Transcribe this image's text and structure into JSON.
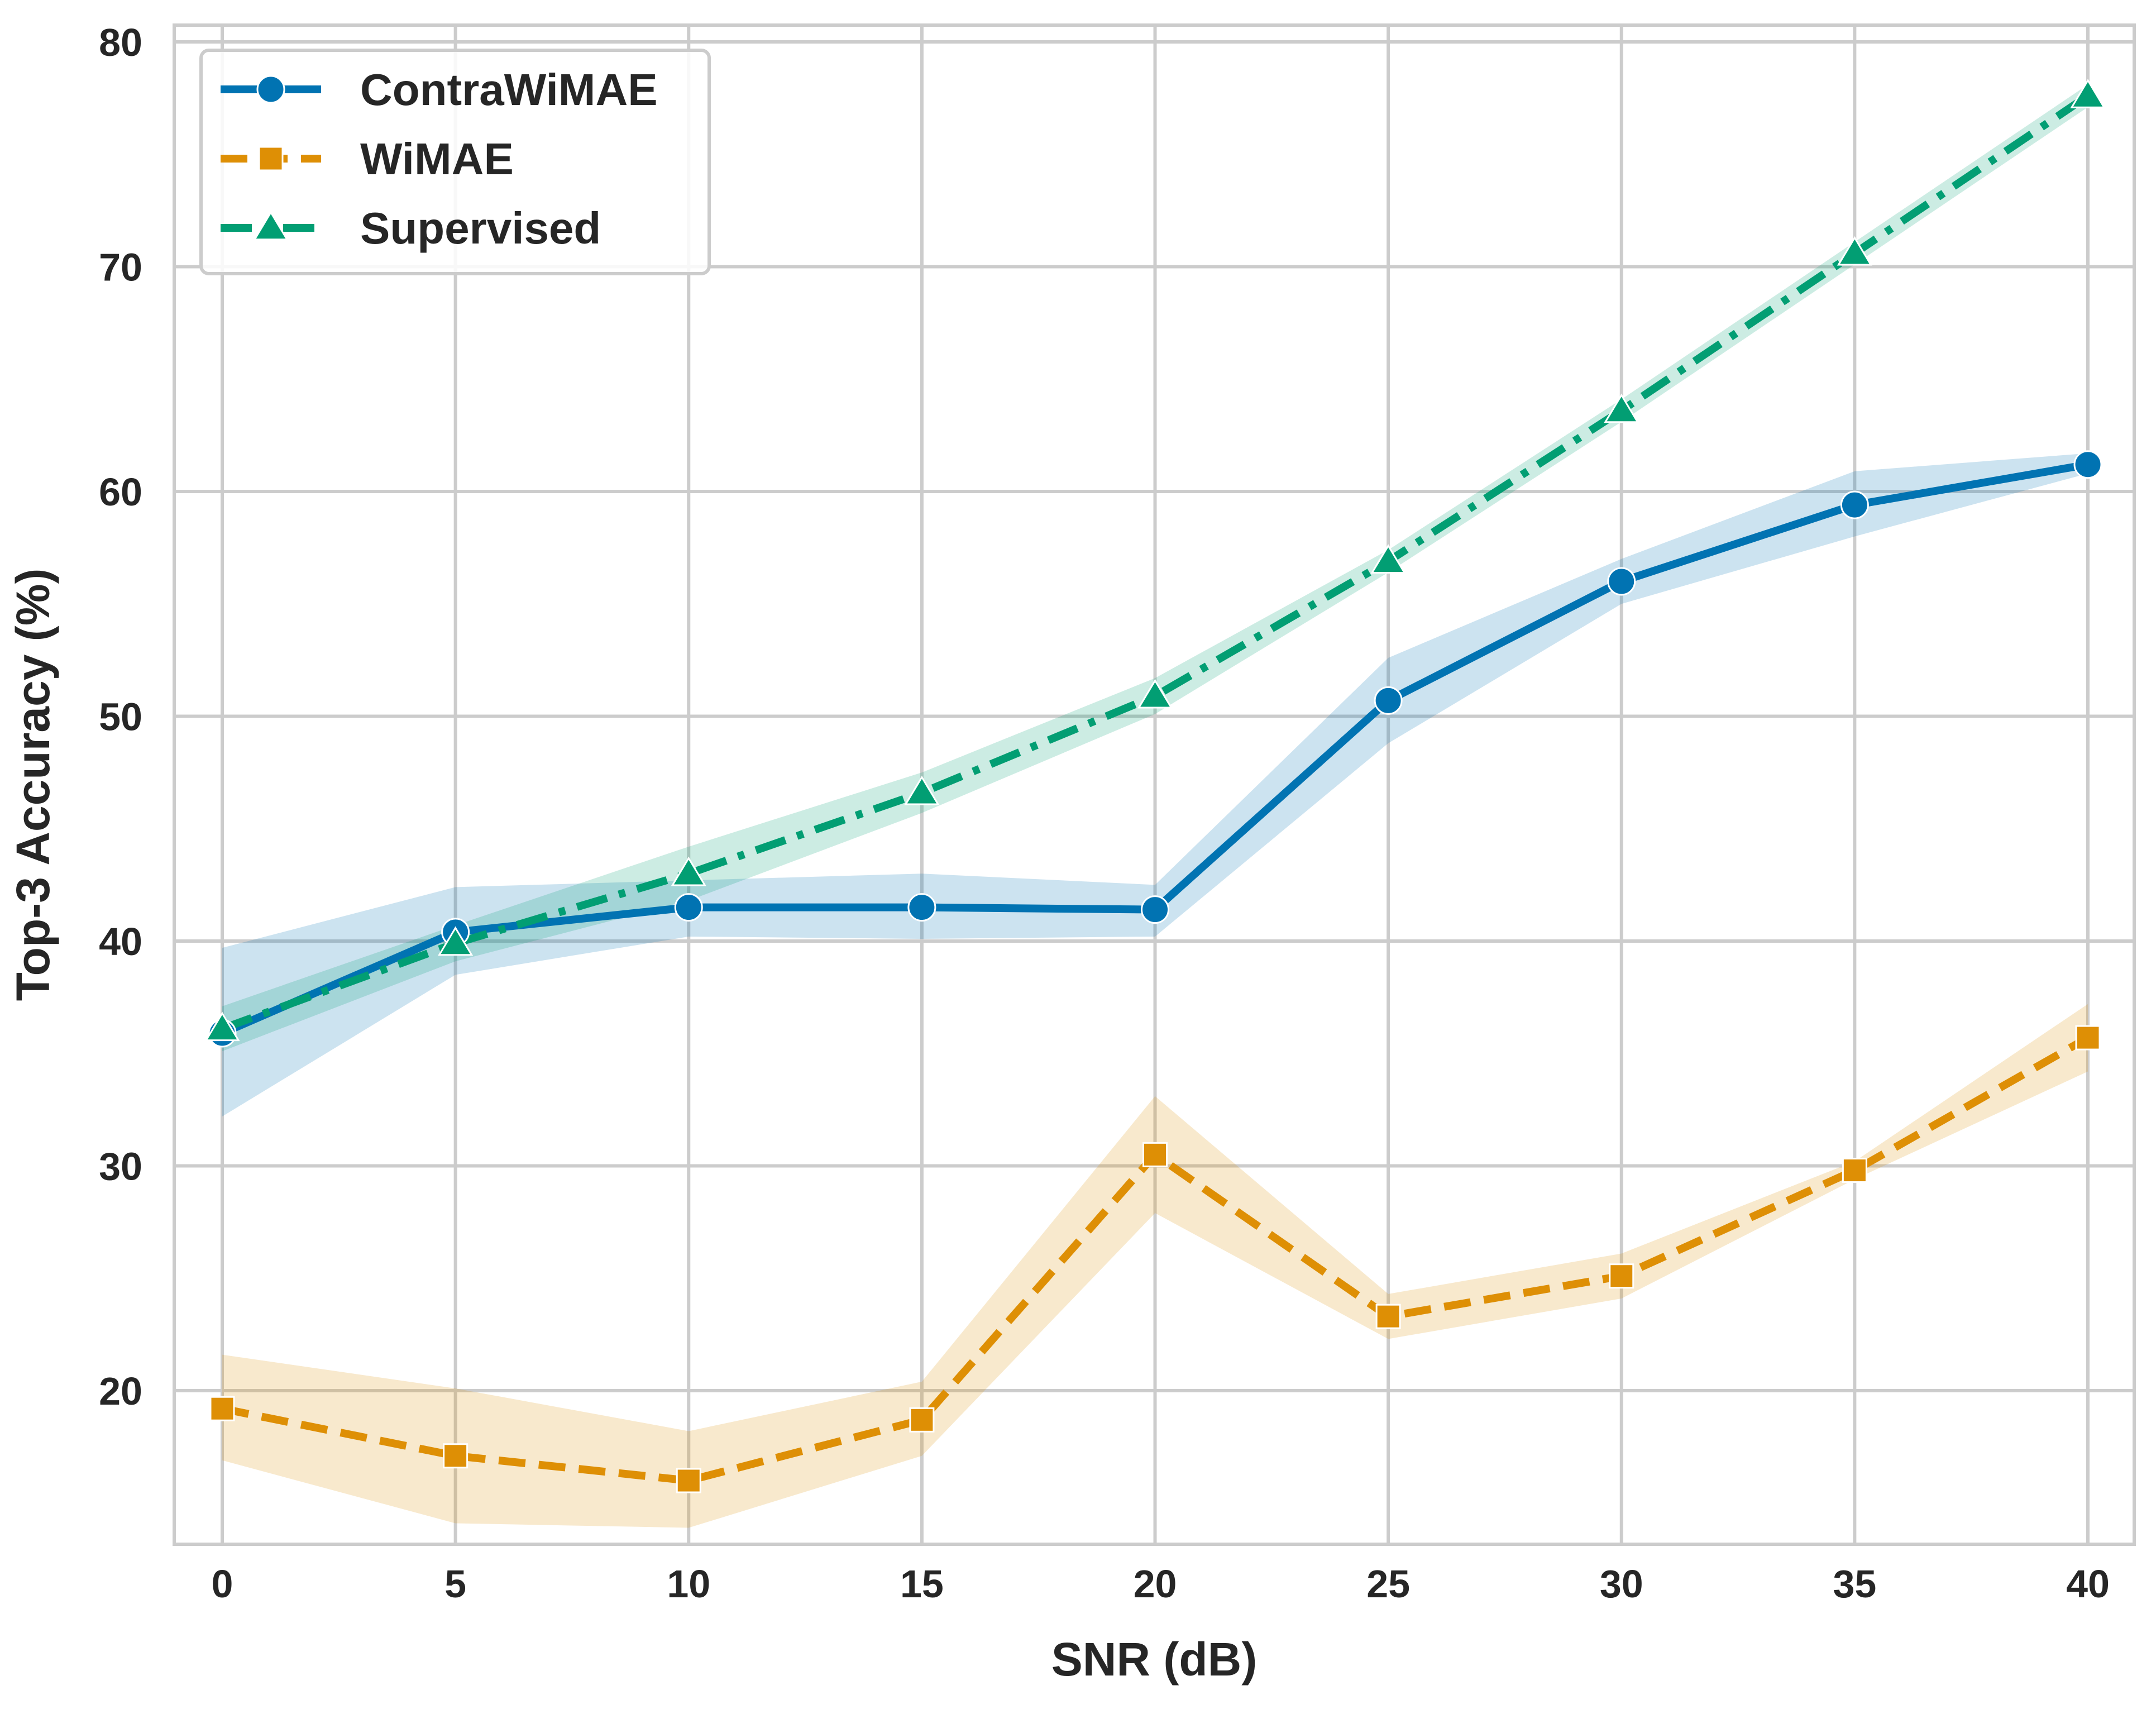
{
  "chart_data": {
    "type": "line",
    "title": "",
    "xlabel": "SNR (dB)",
    "ylabel": "Top-3 Accuracy (%)",
    "x": [
      0,
      5,
      10,
      15,
      20,
      25,
      30,
      35,
      40
    ],
    "xlim": [
      -1,
      41
    ],
    "ylim": [
      13,
      81
    ],
    "xticks": [
      0,
      5,
      10,
      15,
      20,
      25,
      30,
      35,
      40
    ],
    "yticks": [
      20,
      30,
      40,
      50,
      60,
      70,
      80
    ],
    "grid": true,
    "legend_position": "top-left",
    "series": [
      {
        "name": "ContraWiMAE",
        "color": "#0173b2",
        "linestyle": "solid",
        "marker": "circle",
        "values": [
          35.9,
          40.4,
          41.5,
          41.5,
          41.4,
          50.7,
          56.0,
          59.4,
          61.2
        ],
        "lower": [
          32.2,
          38.5,
          40.2,
          40.1,
          40.2,
          48.8,
          55.0,
          58.0,
          60.8
        ],
        "upper": [
          39.7,
          42.4,
          42.7,
          43.0,
          42.5,
          52.6,
          57.0,
          60.9,
          61.7
        ]
      },
      {
        "name": "WiMAE",
        "color": "#de8f05",
        "linestyle": "dashed",
        "marker": "square",
        "values": [
          19.2,
          17.1,
          16.0,
          18.7,
          30.5,
          23.3,
          25.1,
          29.8,
          35.7
        ],
        "lower": [
          16.9,
          14.1,
          13.9,
          17.1,
          27.9,
          22.3,
          24.1,
          29.4,
          34.2
        ],
        "upper": [
          21.6,
          20.1,
          18.2,
          20.4,
          33.1,
          24.3,
          26.1,
          30.2,
          37.2
        ]
      },
      {
        "name": "Supervised",
        "color": "#029e73",
        "linestyle": "dashdot",
        "marker": "triangle",
        "values": [
          36.1,
          39.9,
          43.0,
          46.6,
          50.9,
          56.9,
          63.6,
          70.6,
          77.6
        ],
        "lower": [
          35.1,
          39.1,
          41.8,
          45.7,
          50.1,
          56.4,
          63.1,
          70.1,
          77.1
        ],
        "upper": [
          37.1,
          40.7,
          44.2,
          47.5,
          51.7,
          57.4,
          64.1,
          71.1,
          78.1
        ]
      }
    ]
  }
}
